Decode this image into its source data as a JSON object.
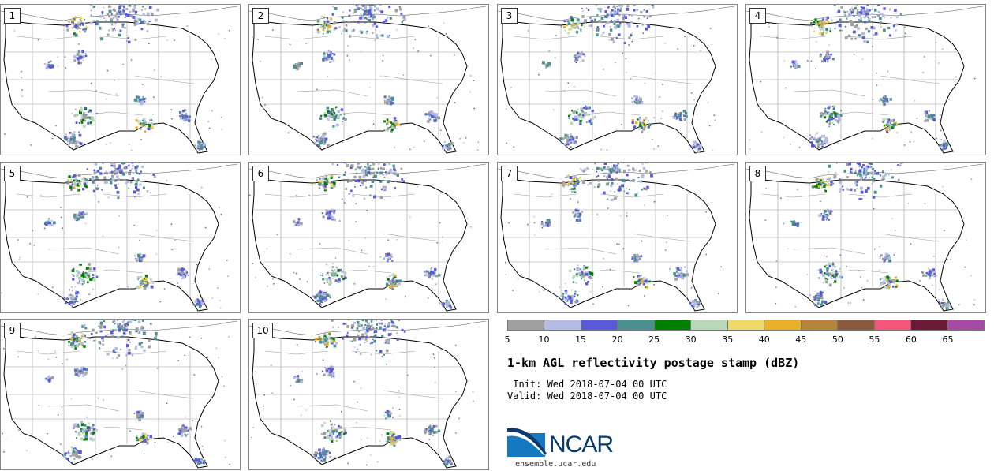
{
  "panels": [
    {
      "label": "1"
    },
    {
      "label": "2"
    },
    {
      "label": "3"
    },
    {
      "label": "4"
    },
    {
      "label": "5"
    },
    {
      "label": "6"
    },
    {
      "label": "7"
    },
    {
      "label": "8"
    },
    {
      "label": "9"
    },
    {
      "label": "10"
    }
  ],
  "colorbar": {
    "colors": [
      "#a0a0a0",
      "#b4bce6",
      "#5a5ad8",
      "#4a9090",
      "#008000",
      "#b8d8b8",
      "#eed968",
      "#eab028",
      "#b8833a",
      "#8a5a3e",
      "#f4577a",
      "#6c1a38",
      "#a64aa6"
    ],
    "ticks": [
      "5",
      "10",
      "15",
      "20",
      "25",
      "30",
      "35",
      "40",
      "45",
      "50",
      "55",
      "60",
      "65"
    ]
  },
  "title": "1-km AGL reflectivity postage stamp (dBZ)",
  "init": " Init: Wed 2018-07-04 00 UTC",
  "valid": "Valid: Wed 2018-07-04 00 UTC",
  "logo": {
    "text": "NCAR",
    "website": "ensemble.ucar.edu",
    "color": "#0a3a6b",
    "accent": "#1479c0"
  }
}
